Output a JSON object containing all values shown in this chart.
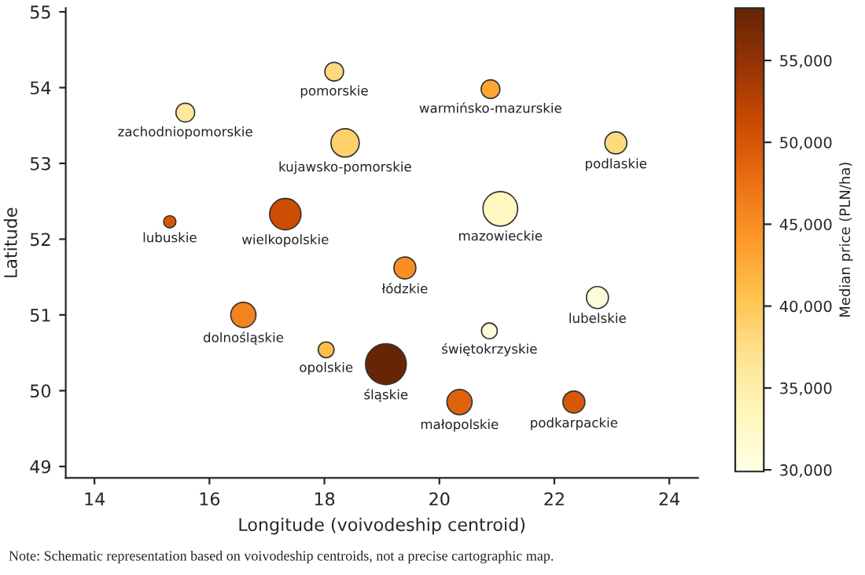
{
  "chart_data": {
    "type": "bubble",
    "xlabel": "Longitude (voivodeship centroid)",
    "ylabel": "Latitude",
    "clabel": "Median price (PLN/ha)",
    "x": [
      15.58,
      18.17,
      18.36,
      15.31,
      17.32,
      19.4,
      20.89,
      23.07,
      21.06,
      22.75,
      20.87,
      20.35,
      22.34,
      16.59,
      18.03,
      19.07
    ],
    "values": [
      53.67,
      54.21,
      53.27,
      52.23,
      52.33,
      51.62,
      53.98,
      53.27,
      52.4,
      51.23,
      50.79,
      49.85,
      49.85,
      51.0,
      50.54,
      50.35
    ],
    "sizes": [
      0.21,
      0.21,
      0.48,
      0.09,
      0.59,
      0.29,
      0.21,
      0.29,
      0.72,
      0.29,
      0.15,
      0.38,
      0.29,
      0.38,
      0.15,
      1
    ],
    "cvalues": [
      36000,
      38000,
      39000,
      50000,
      51000,
      45000,
      43000,
      38000,
      33000,
      31000,
      31000,
      49000,
      50000,
      46000,
      41000,
      58000
    ],
    "clim": [
      29900,
      58200
    ],
    "cticks": [
      {
        "value": 30000,
        "label": "30,000"
      },
      {
        "value": 35000,
        "label": "35,000"
      },
      {
        "value": 40000,
        "label": "40,000"
      },
      {
        "value": 45000,
        "label": "45,000"
      },
      {
        "value": 50000,
        "label": "50,000"
      },
      {
        "value": 55000,
        "label": "55,000"
      }
    ],
    "xlim": [
      13.5,
      24.5
    ],
    "xticks": [
      14,
      16,
      18,
      20,
      22,
      24
    ],
    "ylim": [
      48.85,
      55.05
    ],
    "yticks": [
      49,
      50,
      51,
      52,
      53,
      54,
      55
    ],
    "grid": false,
    "annotations": [
      {
        "text": "zachodniopomorskie",
        "x": 15.58,
        "y": 53.67
      },
      {
        "text": "pomorskie",
        "x": 18.17,
        "y": 54.21
      },
      {
        "text": "kujawsko-pomorskie",
        "x": 18.36,
        "y": 53.27
      },
      {
        "text": "lubuskie",
        "x": 15.31,
        "y": 52.23
      },
      {
        "text": "wielkopolskie",
        "x": 17.32,
        "y": 52.33
      },
      {
        "text": "łódzkie",
        "x": 19.4,
        "y": 51.62
      },
      {
        "text": "warmińsko-mazurskie",
        "x": 20.89,
        "y": 53.98
      },
      {
        "text": "podlaskie",
        "x": 23.07,
        "y": 53.27
      },
      {
        "text": "mazowieckie",
        "x": 21.06,
        "y": 52.4
      },
      {
        "text": "lubelskie",
        "x": 22.75,
        "y": 51.23
      },
      {
        "text": "świętokrzyskie",
        "x": 20.87,
        "y": 50.79
      },
      {
        "text": "małopolskie",
        "x": 20.35,
        "y": 49.85
      },
      {
        "text": "podkarpackie",
        "x": 22.34,
        "y": 49.85
      },
      {
        "text": "dolnośląskie",
        "x": 16.59,
        "y": 51.0
      },
      {
        "text": "opolskie",
        "x": 18.03,
        "y": 50.54
      },
      {
        "text": "śląskie",
        "x": 19.07,
        "y": 50.35
      },
      "Note: Schematic representation based on voivodeship centroids, not a precise cartographic map."
    ]
  }
}
